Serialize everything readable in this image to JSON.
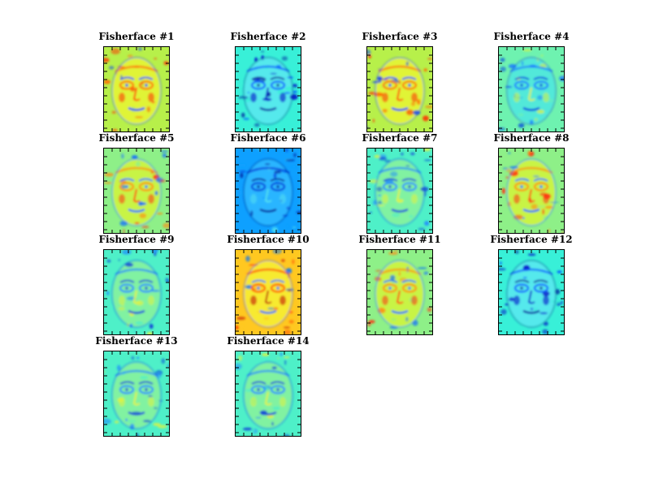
{
  "chart_data": {
    "type": "heatmap",
    "colormap": "jet",
    "grid": "4x4",
    "axis_ticks": "no labels",
    "panels": [
      {
        "title": "Fisherface #1",
        "style": "warm"
      },
      {
        "title": "Fisherface #2",
        "style": "cool-blue"
      },
      {
        "title": "Fisherface #3",
        "style": "warm"
      },
      {
        "title": "Fisherface #4",
        "style": "cool"
      },
      {
        "title": "Fisherface #5",
        "style": "yellow"
      },
      {
        "title": "Fisherface #6",
        "style": "blue"
      },
      {
        "title": "Fisherface #7",
        "style": "cyan"
      },
      {
        "title": "Fisherface #8",
        "style": "yellow"
      },
      {
        "title": "Fisherface #9",
        "style": "cyan"
      },
      {
        "title": "Fisherface #10",
        "style": "hot"
      },
      {
        "title": "Fisherface #11",
        "style": "yellow"
      },
      {
        "title": "Fisherface #12",
        "style": "cool-blue"
      },
      {
        "title": "Fisherface #13",
        "style": "cyan"
      },
      {
        "title": "Fisherface #14",
        "style": "cyan"
      }
    ]
  }
}
